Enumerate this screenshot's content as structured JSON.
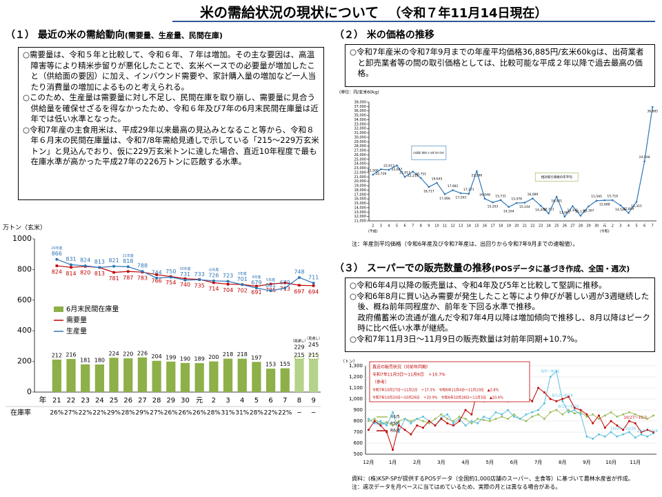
{
  "header": {
    "title": "米の需給状況の現状について",
    "date": "（令和７年11月14日現在）"
  },
  "sections": [
    {
      "heading": "（１） 最近の米の需給動向",
      "subheading": "(需要量、生産量、民間在庫)",
      "bullets": [
        "○需要量は、令和５年と比較して、令和６年、７年は増加。その主な要因は、高温障害等により精米歩留りが悪化したことで、玄米ベースでの必要量が増加したこと（供給面の要因）に加え、インバウンド需要や、家計購入量の増加など一人当たり消費量の増加によるものと考えられる。",
        "○このため、生産量は需要量に対し不足し、民間在庫を取り崩し、需要量に見合う供給量を確保せざるを得なかったため、令和６年及び7年の6月末民間在庫量は近年では低い水準となった。",
        "○令和7年産の主食用米は、平成29年以来最高の見込みとなること等から、令和８年６月末の民間在庫量は、令和7/8年需給見通しで示している「215～229万玄米トン」と見込んでおり、仮に229万玄米トンに達した場合、直近10年程度で最も在庫水準が高かった平成27年の226万トンに匹敵する水準。"
      ]
    },
    {
      "heading": "（２） 米の価格の推移",
      "bullets": [
        "○令和7年産米の令和7年9月までの年産平均価格36,885円/玄米60kgは、出荷業者と卸売業者等の間の取引価格としては、比較可能な平成２年以降で過去最高の価格。"
      ],
      "note": "注：年産別平均価格（令和6年産及び令和7年産は、出回りから令和7年9月までの速報値）。"
    },
    {
      "heading": "（３） スーパーでの販売数量の推移",
      "subheading": "(POSデータに基づき作成、全国・週次)",
      "bullets": [
        "○令和6年4月以降の販売量は、令和4年及び5年と比較して堅調に推移。",
        "○令和6年8月に買い込み需要が発生したこと等により伸びが著しい週が3週継続した後、概ね前年同程度か、前年を下回る水準で推移。",
        "　政府備蓄米の流通が進んだ令和7年4月以降は増加傾向で推移し、8月以降はピーク時に比べ低い水準が継続。",
        "○令和7年11月3日～11月9日の販売数量は対前年同期+10.7%。"
      ],
      "source": "資料：(株)KSP-SPが提供するPOSデータ（全国約1,000店舗のスーパー、主食等）に基づいて農林水産省が作成。",
      "note": "注：週次データを月ベースに当てはめているため、実際の月とは異なる場合がある。"
    }
  ],
  "chart_data": [
    {
      "type": "combo",
      "unit_label": "万トン（玄米）",
      "x_label": "年",
      "categories": [
        "21",
        "22",
        "23",
        "24",
        "25",
        "26",
        "27",
        "28",
        "29",
        "30",
        "元",
        "2",
        "3",
        "4",
        "5",
        "6",
        "7",
        "8",
        "9"
      ],
      "series": [
        {
          "name": "6月末民間在庫量",
          "kind": "bar",
          "color": "#8db048",
          "values": [
            212,
            216,
            181,
            180,
            224,
            220,
            226,
            204,
            199,
            190,
            189,
            200,
            218,
            218,
            197,
            153,
            155,
            215,
            215
          ]
        },
        {
          "name": "需要量",
          "kind": "line",
          "color": "#c00000",
          "values": [
            824,
            814,
            820,
            813,
            781,
            787,
            783,
            766,
            754,
            740,
            735,
            714,
            704,
            702,
            691,
            705,
            713,
            697,
            694
          ]
        },
        {
          "name": "生産量",
          "kind": "line",
          "color": "#2e75b6",
          "values": [
            866,
            831,
            824,
            813,
            821,
            818,
            788,
            744,
            750,
            731,
            733,
            726,
            723,
            701,
            679,
            661,
            679,
            748,
            711
          ]
        }
      ],
      "forecast_upper": [
        null,
        null,
        null,
        null,
        null,
        null,
        null,
        null,
        null,
        null,
        null,
        null,
        null,
        null,
        null,
        null,
        null,
        229,
        245
      ],
      "forecast_note": "（見通し）",
      "crop_labels": [
        {
          "text": "20年産",
          "category": 0
        },
        {
          "text": "21年産",
          "category": 5
        },
        {
          "text": "30年産",
          "category": 9
        },
        {
          "text": "元年産",
          "category": 11
        },
        {
          "text": "3年産",
          "category": 13
        },
        {
          "text": "4年産",
          "category": 14
        },
        {
          "text": "5年産",
          "category": 15
        }
      ],
      "rate_label": "在庫率",
      "rate_values": [
        "26%",
        "27%",
        "22%",
        "22%",
        "29%",
        "28%",
        "29%",
        "27%",
        "26%",
        "26%",
        "26%",
        "28%",
        "31%",
        "31%",
        "28%",
        "22%",
        "22%",
        "−",
        "−"
      ],
      "ylim": [
        0,
        1000
      ],
      "yticks": [
        0,
        200,
        400,
        600,
        800,
        1000
      ],
      "legend": "left"
    },
    {
      "type": "line",
      "unit_label": "(単位：円/玄米60kg)",
      "color": "#2e75b6",
      "categories": [
        "2",
        "3",
        "4",
        "5",
        "6",
        "7",
        "8",
        "9",
        "10",
        "11",
        "12",
        "13",
        "14",
        "15",
        "16",
        "17",
        "18",
        "19",
        "20",
        "21",
        "22",
        "23",
        "24",
        "25",
        "26",
        "27",
        "28",
        "29",
        "30",
        "元",
        "2",
        "3",
        "4",
        "5",
        "6",
        "7"
      ],
      "era_labels": [
        {
          "category": 0,
          "text": "(平成)"
        },
        {
          "category": 29,
          "text": "(令和)"
        }
      ],
      "values": [
        21500,
        22728,
        22613,
        23607,
        21017,
        22213,
        20751,
        18717,
        19645,
        17066,
        17981,
        17293,
        17171,
        22296,
        16048,
        15203,
        15731,
        14164,
        15076,
        15144,
        16089,
        14470,
        12711,
        16501,
        11967,
        14341,
        12175,
        14307,
        15595,
        15688,
        15716,
        14525,
        12804,
        15315,
        24548,
        36885
      ],
      "value_labels": [
        "21,500",
        "22,728",
        "22,613",
        "23,607",
        "21,017",
        "22,213",
        "20,751",
        "18,717",
        "19,645",
        "17,066",
        "17,981",
        "17,293",
        "17,171",
        "22,296",
        "16,048",
        "15,203",
        "15,731",
        "14,164",
        "15,076",
        "15,144",
        "16,089",
        "14,470",
        "12,711",
        "16,501",
        "11,967",
        "14,341",
        "12,175",
        "14,307",
        "15,595",
        "15,688",
        "15,716",
        "14,525",
        "12,804",
        "15,315",
        "24,548",
        "36,885"
      ],
      "annotations": [
        {
          "text": "(注) 全国米穀取引・価格形成センター入札結果（平成2年～平成18年）",
          "category": 7
        },
        {
          "text": "相対取引価格の年平均",
          "category": 23
        }
      ],
      "ylim": [
        11000,
        38000
      ],
      "yticks": [
        {
          "value": 11000,
          "label": "11,000"
        },
        {
          "value": 12000,
          "label": "12,000"
        },
        {
          "value": 13000,
          "label": "13,000"
        },
        {
          "value": 14000,
          "label": "14,000"
        },
        {
          "value": 15000,
          "label": "15,000"
        },
        {
          "value": 16000,
          "label": "16,000"
        },
        {
          "value": 17000,
          "label": "17,000"
        },
        {
          "value": 18000,
          "label": "18,000"
        },
        {
          "value": 19000,
          "label": "19,000"
        },
        {
          "value": 20000,
          "label": "20,000"
        },
        {
          "value": 21000,
          "label": "21,000"
        },
        {
          "value": 22000,
          "label": "22,000"
        },
        {
          "value": 23000,
          "label": "23,000"
        },
        {
          "value": 24000,
          "label": "24,000"
        },
        {
          "value": 25000,
          "label": "25,000"
        },
        {
          "value": 26000,
          "label": "26,000"
        },
        {
          "value": 27000,
          "label": "27,000"
        },
        {
          "value": 28000,
          "label": "28,000"
        },
        {
          "value": 29000,
          "label": "29,000"
        },
        {
          "value": 30000,
          "label": "30,000"
        },
        {
          "value": 31000,
          "label": "31,000"
        },
        {
          "value": 32000,
          "label": "32,000"
        },
        {
          "value": 33000,
          "label": "33,000"
        },
        {
          "value": 34000,
          "label": "34,000"
        },
        {
          "value": 35000,
          "label": "35,000"
        },
        {
          "value": 36000,
          "label": "36,000"
        },
        {
          "value": 37000,
          "label": "37,000"
        },
        {
          "value": 38000,
          "label": "38,000"
        }
      ]
    },
    {
      "type": "line",
      "unit_label": "（トン）",
      "categories": [
        "12月",
        null,
        null,
        null,
        "1月",
        null,
        null,
        null,
        "2月",
        null,
        null,
        null,
        "3月",
        null,
        null,
        null,
        "4月",
        null,
        null,
        null,
        "5月",
        null,
        null,
        null,
        "6月",
        null,
        null,
        null,
        "7月",
        null,
        null,
        null,
        "8月",
        null,
        null,
        null,
        "9月",
        null,
        null,
        null,
        "10月",
        null,
        null,
        null,
        "11月",
        null,
        null,
        null
      ],
      "series": [
        {
          "name": "R4/5",
          "color": "#9bbb59",
          "values": [
            800,
            820,
            780,
            790,
            760,
            800,
            820,
            800,
            820,
            800,
            780,
            820,
            860,
            820,
            800,
            840,
            820,
            780,
            820,
            810,
            800,
            820,
            840,
            820,
            860,
            820,
            800,
            840,
            860,
            820,
            880,
            900,
            860,
            900,
            870,
            880,
            840,
            860,
            820,
            850,
            880,
            840,
            860,
            880,
            860,
            840,
            820,
            850
          ]
        },
        {
          "name": "R5/6",
          "color": "#5bc0de",
          "values": [
            820,
            780,
            800,
            760,
            880,
            700,
            820,
            780,
            820,
            840,
            800,
            760,
            830,
            860,
            780,
            820,
            760,
            800,
            780,
            840,
            820,
            880,
            860,
            900,
            840,
            820,
            860,
            880,
            900,
            960,
            1200,
            1250,
            980,
            880,
            900,
            860,
            660,
            640,
            680,
            660,
            700,
            660,
            680,
            700,
            650,
            680,
            660,
            690
          ]
        },
        {
          "name": "R6/7",
          "color": "#c00000",
          "values": [
            720,
            800,
            760,
            700,
            540,
            760,
            720,
            680,
            760,
            740,
            800,
            760,
            820,
            780,
            760,
            800,
            900,
            860,
            1080,
            980,
            1050,
            1000,
            1000,
            980,
            1080,
            1000,
            1020,
            980,
            1100,
            1060,
            1000,
            980,
            1000,
            1020,
            920,
            900,
            860,
            780,
            850,
            740,
            800,
            760,
            720,
            800,
            780,
            700,
            720,
            700
          ]
        }
      ],
      "box_lines": [
        "直近の販売状況（対前年同期）",
        "令和7年11月3日～11月9日　＋10.7%",
        "（参考）",
        "令和7年10月27日～11月2日　＋17.3%　令和6年11月4日～11月10日　▲3.8%",
        "令和7年10月20日～10月26日　＋20.9%　令和6年10月28日～11月3日　▲10.4%"
      ],
      "annotations": [
        {
          "text": "8/5～8/11",
          "category": 30,
          "series": 1
        },
        {
          "text": "8/19～8/25",
          "category": 33,
          "series": 1
        },
        {
          "text": "8/12～8/18",
          "category": 32,
          "series": 1
        },
        {
          "text": "10/27～11/2",
          "category": 44,
          "series": 2
        },
        {
          "text": "10/20～10/26",
          "category": 42,
          "series": 1
        },
        {
          "text": "11/3～11/9",
          "category": 46,
          "series": 1
        }
      ],
      "ylim": [
        500,
        1300
      ],
      "yticks": [
        500,
        600,
        700,
        800,
        900,
        {
          "value": 1000,
          "label": "1,000"
        },
        {
          "value": 1100,
          "label": "1,100"
        },
        {
          "value": 1200,
          "label": "1,200"
        },
        {
          "value": 1300,
          "label": "1,300"
        }
      ],
      "grid": true,
      "legend": "left"
    }
  ]
}
